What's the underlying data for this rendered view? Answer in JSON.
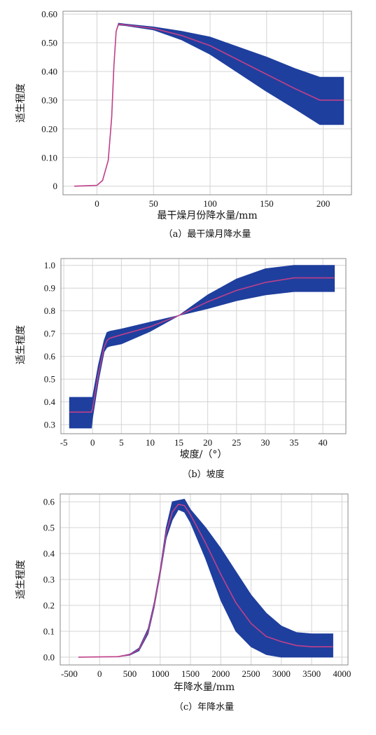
{
  "chart_data": [
    {
      "type": "area",
      "caption": "（a）最干燥月降水量",
      "xlabel": "最干燥月份降水量/mm",
      "ylabel": "适生程度",
      "xlim": [
        -30,
        225
      ],
      "ylim": [
        -0.03,
        0.61
      ],
      "xticks": [
        0,
        50,
        100,
        150,
        200
      ],
      "xtick_labels": [
        "0",
        "50",
        "100",
        "150",
        "200"
      ],
      "yticks": [
        0,
        0.1,
        0.2,
        0.3,
        0.4,
        0.5,
        0.6
      ],
      "ytick_labels": [
        "0",
        "0.10",
        "0.20",
        "0.30",
        "0.40",
        "0.50",
        "0.60"
      ],
      "grid": true,
      "band_color": "#1f3f9e",
      "line_color": "#c0408a",
      "x": [
        -20,
        0,
        5,
        10,
        13,
        15,
        17,
        19,
        25,
        50,
        75,
        100,
        125,
        150,
        175,
        197,
        218
      ],
      "mean": [
        0,
        0.003,
        0.02,
        0.09,
        0.24,
        0.42,
        0.54,
        0.565,
        0.562,
        0.55,
        0.525,
        0.49,
        0.44,
        0.39,
        0.34,
        0.3,
        0.3
      ],
      "upper": [
        0,
        0.003,
        0.02,
        0.09,
        0.24,
        0.42,
        0.54,
        0.568,
        0.565,
        0.555,
        0.54,
        0.52,
        0.485,
        0.45,
        0.41,
        0.38,
        0.38
      ],
      "lower": [
        0,
        0.003,
        0.02,
        0.09,
        0.24,
        0.42,
        0.54,
        0.562,
        0.56,
        0.545,
        0.51,
        0.46,
        0.395,
        0.33,
        0.27,
        0.215,
        0.215
      ]
    },
    {
      "type": "area",
      "caption": "（b）坡度",
      "xlabel": "坡度/（°）",
      "ylabel": "适生程度",
      "xlim": [
        -5.5,
        44
      ],
      "ylim": [
        0.26,
        1.03
      ],
      "xticks": [
        -5,
        0,
        5,
        10,
        15,
        20,
        25,
        30,
        35,
        40
      ],
      "xtick_labels": [
        "-5",
        "0",
        "5",
        "10",
        "15",
        "20",
        "25",
        "30",
        "35",
        "40"
      ],
      "yticks": [
        0.3,
        0.4,
        0.5,
        0.6,
        0.7,
        0.8,
        0.9,
        1.0
      ],
      "ytick_labels": [
        "0.3",
        "0.4",
        "0.5",
        "0.6",
        "0.7",
        "0.8",
        "0.9",
        "1.0"
      ],
      "grid": true,
      "band_color": "#1f3f9e",
      "line_color": "#c0408a",
      "x": [
        -4,
        -0.2,
        0,
        1,
        2,
        2.5,
        3,
        5,
        10,
        15,
        20,
        25,
        30,
        35,
        38,
        42
      ],
      "mean": [
        0.355,
        0.355,
        0.37,
        0.52,
        0.64,
        0.67,
        0.68,
        0.695,
        0.73,
        0.78,
        0.84,
        0.89,
        0.925,
        0.945,
        0.945,
        0.945
      ],
      "upper": [
        0.42,
        0.42,
        0.42,
        0.56,
        0.67,
        0.705,
        0.71,
        0.72,
        0.75,
        0.78,
        0.87,
        0.94,
        0.985,
        1.0,
        1.0,
        1.0
      ],
      "lower": [
        0.285,
        0.285,
        0.33,
        0.49,
        0.62,
        0.64,
        0.645,
        0.655,
        0.71,
        0.78,
        0.81,
        0.845,
        0.87,
        0.885,
        0.885,
        0.885
      ]
    },
    {
      "type": "area",
      "caption": "（c）年降水量",
      "xlabel": "年降水量/mm",
      "ylabel": "适生程度",
      "xlim": [
        -650,
        4100
      ],
      "ylim": [
        -0.03,
        0.63
      ],
      "xticks": [
        -500,
        0,
        500,
        1000,
        1500,
        2000,
        2500,
        3000,
        3500,
        4000
      ],
      "xtick_labels": [
        "-500",
        "0",
        "500",
        "1000",
        "1500",
        "2000",
        "2500",
        "3000",
        "3500",
        "4000"
      ],
      "yticks": [
        0,
        0.1,
        0.2,
        0.3,
        0.4,
        0.5,
        0.6
      ],
      "ytick_labels": [
        "0.0",
        "0.1",
        "0.2",
        "0.3",
        "0.4",
        "0.5",
        "0.6"
      ],
      "grid": true,
      "band_color": "#1f3f9e",
      "line_color": "#c0408a",
      "x": [
        -350,
        300,
        500,
        650,
        800,
        900,
        1000,
        1100,
        1200,
        1300,
        1400,
        1500,
        1750,
        2000,
        2250,
        2500,
        2750,
        3000,
        3250,
        3500,
        3850
      ],
      "mean": [
        0,
        0.002,
        0.01,
        0.03,
        0.1,
        0.2,
        0.33,
        0.48,
        0.56,
        0.59,
        0.585,
        0.55,
        0.44,
        0.32,
        0.21,
        0.13,
        0.08,
        0.06,
        0.045,
        0.04,
        0.04
      ],
      "upper": [
        0,
        0.002,
        0.012,
        0.035,
        0.11,
        0.21,
        0.34,
        0.5,
        0.6,
        0.605,
        0.61,
        0.57,
        0.5,
        0.42,
        0.33,
        0.24,
        0.17,
        0.12,
        0.095,
        0.09,
        0.09
      ],
      "lower": [
        0,
        0.002,
        0.008,
        0.025,
        0.09,
        0.19,
        0.32,
        0.46,
        0.53,
        0.57,
        0.56,
        0.52,
        0.38,
        0.22,
        0.1,
        0.04,
        0.01,
        0.0,
        0.0,
        0.0,
        0.0
      ]
    }
  ]
}
